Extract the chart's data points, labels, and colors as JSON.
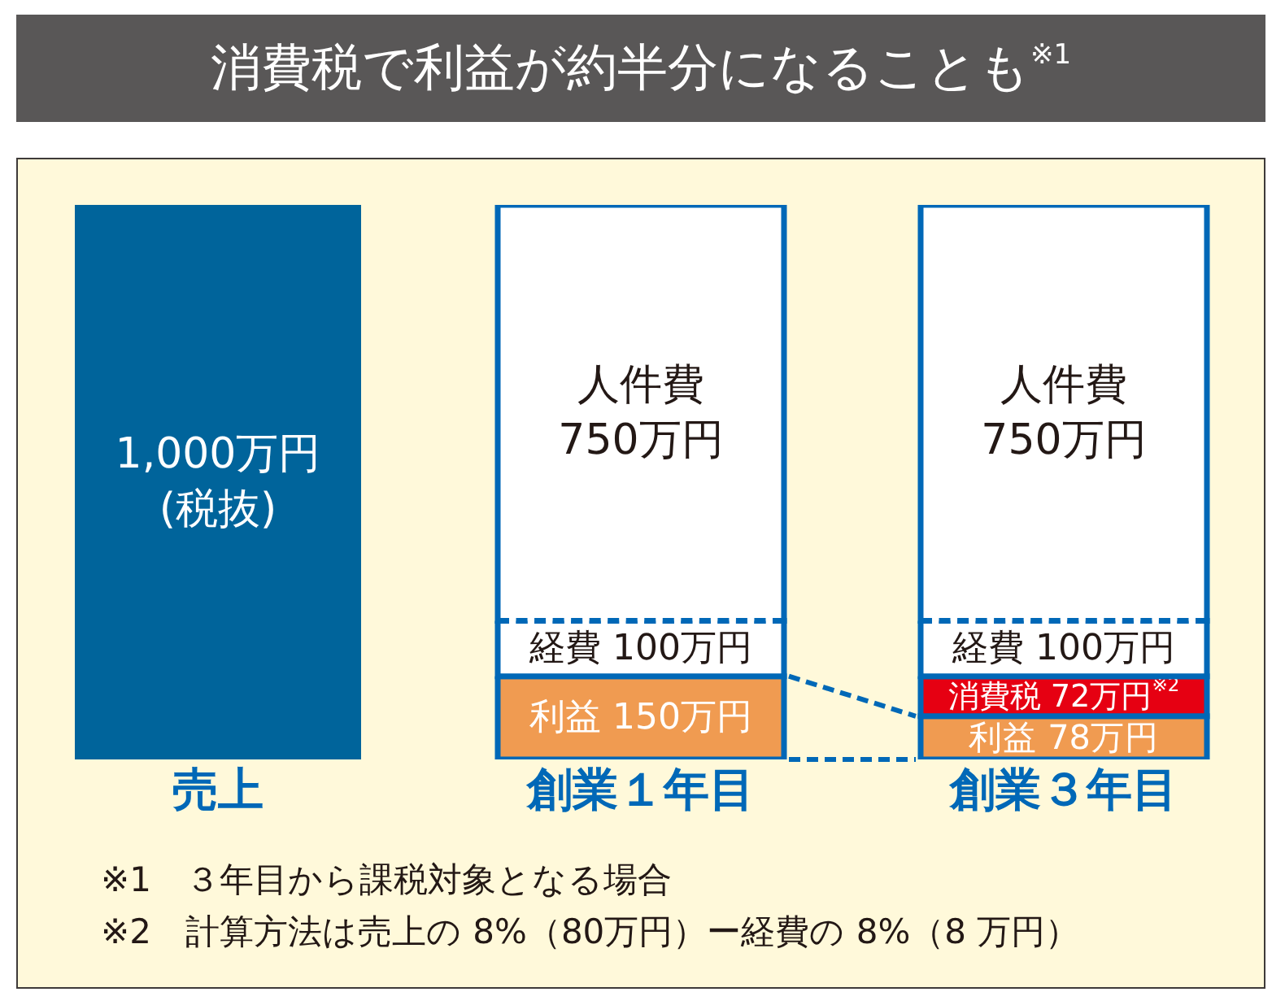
{
  "chart_data": {
    "type": "bar",
    "title": "消費税で利益が約半分になることも$^{※1}$",
    "categories": [
      "売上",
      "創業１年目",
      "創業３年目"
    ],
    "stacked": true,
    "tick_labels": "x",
    "series": [
      {
        "color": "#00649b",
        "values": [
          1000,
          null,
          null
        ],
        "value_labels": [
          "1,000万円 (税抜)",
          null,
          null
        ]
      },
      {
        "name": "利益",
        "color": "#f09b51",
        "values": [
          null,
          150,
          78
        ],
        "value_labels": [
          null,
          "150万円",
          "78万円"
        ]
      },
      {
        "name": "消費税",
        "color": "#e60012",
        "values": [
          null,
          null,
          72
        ],
        "value_labels": [
          null,
          null,
          "72万円$^{※2}$"
        ]
      },
      {
        "name": "経費",
        "color": "#ffffff",
        "values": [
          null,
          100,
          100
        ],
        "value_labels": [
          null,
          "100万円",
          "100万円"
        ]
      },
      {
        "name": "人件費",
        "color": "#ffffff",
        "values": [
          null,
          750,
          750
        ],
        "value_labels": [
          null,
          "750万円",
          "750万円"
        ]
      }
    ],
    "annotations": [
      "※1　３年目から課税対象となる場合",
      "※2　計算方法は売上の 8%（80万円）ー経費の 8%（8 万円）"
    ]
  }
}
